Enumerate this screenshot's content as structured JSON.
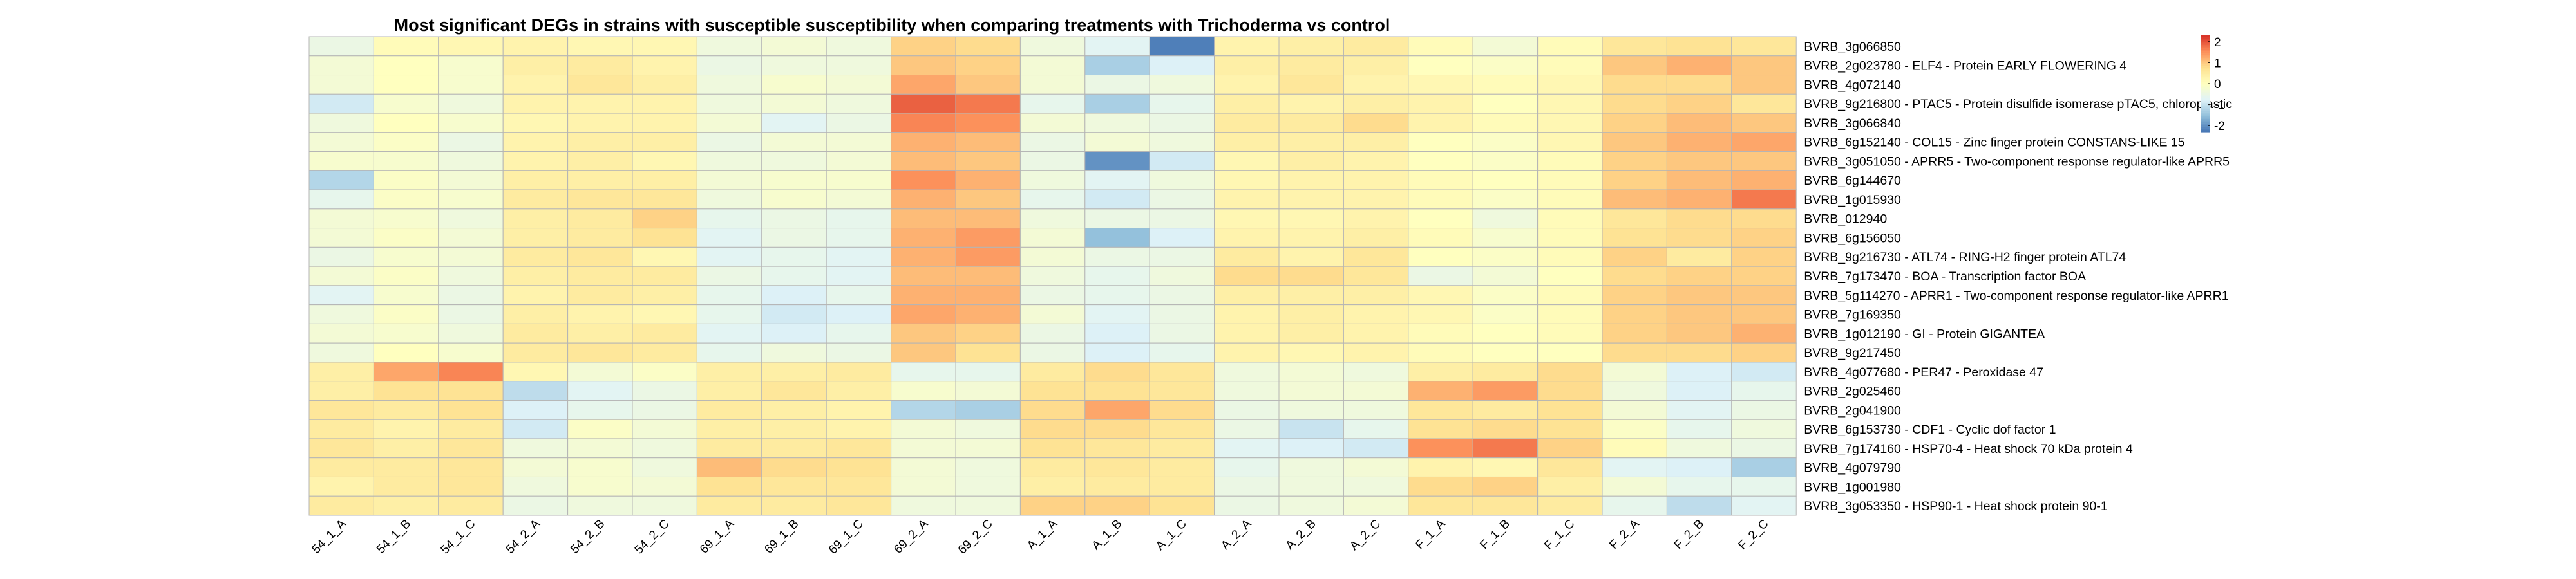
{
  "chart_data": {
    "type": "heatmap",
    "title": "Most significant DEGs in strains with susceptible susceptibility when comparing treatments with Trichoderma vs control",
    "columns": [
      "54_1_A",
      "54_1_B",
      "54_1_C",
      "54_2_A",
      "54_2_B",
      "54_2_C",
      "69_1_A",
      "69_1_B",
      "69_1_C",
      "69_2_A",
      "69_2_C",
      "A_1_A",
      "A_1_B",
      "A_1_C",
      "A_2_A",
      "A_2_B",
      "A_2_C",
      "F_1_A",
      "F_1_B",
      "F_1_C",
      "F_2_A",
      "F_2_B",
      "F_2_C"
    ],
    "rows": [
      "BVRB_3g066850",
      "BVRB_2g023780 - ELF4 - Protein EARLY FLOWERING 4",
      "BVRB_4g072140",
      "BVRB_9g216800 - PTAC5 - Protein disulfide isomerase pTAC5, chloroplastic",
      "BVRB_3g066840",
      "BVRB_6g152140 - COL15 - Zinc finger protein CONSTANS-LIKE 15",
      "BVRB_3g051050 - APRR5 - Two-component response regulator-like APRR5",
      "BVRB_6g144670",
      "BVRB_1g015930",
      "BVRB_012940",
      "BVRB_6g156050",
      "BVRB_9g216730 - ATL74 - RING-H2 finger protein ATL74",
      "BVRB_7g173470 - BOA - Transcription factor BOA",
      "BVRB_5g114270 - APRR1 - Two-component response regulator-like APRR1",
      "BVRB_7g169350",
      "BVRB_1g012190 - GI - Protein GIGANTEA",
      "BVRB_9g217450",
      "BVRB_4g077680 - PER47 - Peroxidase 47",
      "BVRB_2g025460",
      "BVRB_2g041900",
      "BVRB_6g153730 - CDF1 - Cyclic dof factor 1",
      "BVRB_7g174160 - HSP70-4 - Heat shock 70 kDa protein 4",
      "BVRB_4g079790",
      "BVRB_1g001980",
      "BVRB_3g053350 - HSP90-1 - Heat shock protein 90-1"
    ],
    "values": [
      [
        -0.5,
        0.1,
        0.2,
        0.3,
        0.2,
        0.2,
        -0.4,
        -0.3,
        -0.4,
        0.9,
        0.8,
        -0.4,
        -0.7,
        -2.2,
        0.3,
        0.4,
        0.5,
        0.1,
        -0.3,
        0.1,
        0.6,
        0.7,
        0.6
      ],
      [
        -0.3,
        0.0,
        -0.2,
        0.4,
        0.5,
        0.3,
        -0.5,
        -0.4,
        -0.4,
        1.0,
        0.9,
        -0.3,
        -1.3,
        -0.8,
        0.4,
        0.5,
        0.4,
        0.0,
        -0.1,
        0.1,
        1.0,
        1.2,
        1.0
      ],
      [
        -0.3,
        0.0,
        -0.2,
        0.3,
        0.6,
        0.4,
        -0.4,
        -0.2,
        -0.3,
        1.3,
        1.0,
        -0.3,
        -0.5,
        -0.4,
        0.3,
        0.6,
        0.3,
        0.2,
        0.1,
        0.2,
        0.8,
        0.8,
        1.0
      ],
      [
        -0.9,
        -0.2,
        -0.4,
        0.3,
        0.3,
        0.3,
        -0.4,
        -0.3,
        -0.4,
        1.9,
        1.7,
        -0.6,
        -1.3,
        -0.6,
        0.4,
        0.3,
        0.4,
        0.3,
        0.0,
        0.2,
        0.8,
        0.9,
        0.6
      ],
      [
        -0.4,
        0.0,
        -0.2,
        0.2,
        0.3,
        0.3,
        -0.3,
        -0.7,
        -0.5,
        1.6,
        1.5,
        -0.3,
        -0.4,
        -0.5,
        0.5,
        0.5,
        0.8,
        0.3,
        0.1,
        0.2,
        0.9,
        1.1,
        1.0
      ],
      [
        -0.3,
        -0.1,
        -0.5,
        0.3,
        0.4,
        0.4,
        -0.5,
        -0.3,
        -0.3,
        1.2,
        1.1,
        -0.5,
        -0.3,
        -0.4,
        0.4,
        0.4,
        0.4,
        0.0,
        -0.1,
        0.2,
        1.0,
        1.2,
        1.3
      ],
      [
        -0.2,
        -0.2,
        -0.4,
        0.3,
        0.4,
        0.2,
        -0.4,
        -0.4,
        -0.3,
        1.1,
        1.0,
        -0.5,
        -2.0,
        -0.9,
        0.2,
        0.4,
        0.3,
        0.0,
        -0.1,
        0.1,
        0.9,
        1.0,
        1.0
      ],
      [
        -1.2,
        -0.1,
        -0.3,
        0.4,
        0.4,
        0.4,
        -0.3,
        -0.2,
        -0.2,
        1.5,
        1.2,
        -0.4,
        -0.7,
        -0.4,
        0.2,
        0.3,
        0.3,
        0.1,
        0.0,
        0.1,
        0.9,
        1.1,
        1.2
      ],
      [
        -0.6,
        -0.1,
        -0.2,
        0.5,
        0.6,
        0.6,
        -0.4,
        -0.2,
        -0.3,
        1.2,
        1.0,
        -0.6,
        -0.9,
        -0.5,
        0.3,
        0.3,
        0.3,
        0.1,
        -0.1,
        0.1,
        1.1,
        1.2,
        1.7
      ],
      [
        -0.3,
        -0.2,
        -0.4,
        0.4,
        0.5,
        0.9,
        -0.6,
        -0.5,
        -0.6,
        1.1,
        1.1,
        -0.4,
        -0.5,
        -0.5,
        0.2,
        0.2,
        0.3,
        0.0,
        -0.4,
        0.1,
        0.6,
        0.8,
        0.8
      ],
      [
        -0.3,
        -0.1,
        -0.3,
        0.4,
        0.5,
        0.7,
        -0.7,
        -0.5,
        -0.6,
        1.2,
        1.4,
        -0.3,
        -1.5,
        -0.8,
        0.3,
        0.3,
        0.4,
        0.1,
        -0.2,
        0.1,
        0.7,
        0.8,
        0.9
      ],
      [
        -0.5,
        -0.2,
        -0.3,
        0.5,
        0.6,
        0.2,
        -0.7,
        -0.6,
        -0.7,
        1.2,
        1.4,
        -0.3,
        -0.5,
        -0.5,
        0.5,
        0.3,
        0.6,
        0.0,
        -0.1,
        0.1,
        0.9,
        0.5,
        0.9
      ],
      [
        -0.3,
        -0.1,
        -0.4,
        0.4,
        0.5,
        0.5,
        -0.5,
        -0.6,
        -0.7,
        1.1,
        1.1,
        -0.4,
        -0.6,
        -0.4,
        0.8,
        0.8,
        0.6,
        -0.5,
        -0.3,
        0.0,
        0.8,
        0.9,
        0.9
      ],
      [
        -0.7,
        -0.2,
        -0.5,
        0.3,
        0.5,
        0.4,
        -0.6,
        -0.8,
        -0.6,
        1.2,
        1.2,
        -0.5,
        -0.6,
        -0.5,
        0.4,
        0.4,
        0.4,
        0.2,
        -0.1,
        0.1,
        0.9,
        1.0,
        1.0
      ],
      [
        -0.4,
        -0.1,
        -0.5,
        0.4,
        0.3,
        0.2,
        -0.6,
        -0.9,
        -0.8,
        1.3,
        1.2,
        -0.3,
        -0.7,
        -0.5,
        0.3,
        0.4,
        0.3,
        0.2,
        -0.1,
        0.1,
        0.9,
        1.0,
        1.0
      ],
      [
        -0.3,
        -0.2,
        -0.4,
        0.5,
        0.4,
        0.5,
        -0.7,
        -0.8,
        -0.6,
        1.0,
        0.9,
        -0.5,
        -0.8,
        -0.5,
        0.3,
        0.4,
        0.3,
        0.1,
        0.0,
        0.1,
        0.9,
        1.0,
        1.2
      ],
      [
        -0.4,
        0.0,
        -0.2,
        0.5,
        0.6,
        0.5,
        -0.6,
        -0.4,
        -0.5,
        1.0,
        0.7,
        -0.5,
        -0.8,
        -0.6,
        0.3,
        0.2,
        0.3,
        0.1,
        0.0,
        0.0,
        0.8,
        0.8,
        0.9
      ],
      [
        0.4,
        1.3,
        1.6,
        0.2,
        -0.3,
        -0.1,
        0.4,
        0.4,
        0.5,
        -0.6,
        -0.6,
        0.5,
        0.8,
        0.6,
        -0.4,
        -0.3,
        -0.4,
        0.4,
        0.5,
        0.8,
        -0.3,
        -0.8,
        -0.9
      ],
      [
        0.4,
        0.7,
        0.7,
        -1.1,
        -0.7,
        -0.5,
        0.4,
        0.6,
        0.4,
        -0.2,
        -0.3,
        0.7,
        0.7,
        0.6,
        -0.4,
        -0.3,
        -0.3,
        1.2,
        1.4,
        0.8,
        -0.4,
        -0.8,
        -0.6
      ],
      [
        0.6,
        0.5,
        0.7,
        -0.8,
        -0.6,
        -0.5,
        0.5,
        0.4,
        0.3,
        -1.2,
        -1.3,
        0.8,
        1.3,
        0.8,
        -0.5,
        -0.4,
        -0.4,
        0.6,
        0.5,
        0.7,
        -0.3,
        -0.7,
        -0.5
      ],
      [
        0.5,
        0.3,
        0.5,
        -0.9,
        -0.1,
        -0.3,
        0.4,
        0.4,
        0.3,
        -0.3,
        -0.4,
        0.8,
        0.8,
        0.6,
        -0.5,
        -1.0,
        -0.6,
        0.7,
        0.8,
        0.7,
        -0.1,
        -0.6,
        -0.4
      ],
      [
        0.6,
        0.4,
        0.6,
        -0.4,
        -0.3,
        -0.4,
        0.5,
        0.5,
        0.6,
        -0.3,
        -0.3,
        0.7,
        0.6,
        0.5,
        -0.7,
        -0.8,
        -0.9,
        1.5,
        1.7,
        0.9,
        0.1,
        -0.4,
        -0.5
      ],
      [
        0.5,
        0.5,
        0.6,
        -0.3,
        -0.2,
        -0.4,
        1.1,
        0.8,
        0.7,
        -0.3,
        -0.4,
        0.5,
        0.6,
        0.5,
        -0.6,
        -0.4,
        -0.3,
        0.3,
        0.2,
        0.6,
        -0.7,
        -0.8,
        -1.3
      ],
      [
        0.3,
        0.5,
        0.6,
        -0.4,
        -0.2,
        -0.3,
        0.7,
        0.6,
        0.6,
        -0.3,
        -0.4,
        0.4,
        0.5,
        0.5,
        -0.5,
        -0.4,
        -0.4,
        0.8,
        0.9,
        0.4,
        -0.3,
        -0.6,
        -0.6
      ],
      [
        0.5,
        0.4,
        0.5,
        -0.5,
        -0.4,
        -0.4,
        0.5,
        0.5,
        0.6,
        -0.4,
        -0.4,
        0.9,
        0.9,
        0.7,
        -0.5,
        -0.4,
        -0.3,
        0.6,
        0.6,
        0.5,
        -0.6,
        -1.1,
        -0.7
      ]
    ],
    "legend": {
      "ticks": [
        2,
        1,
        0,
        -1,
        -2
      ],
      "range": [
        -2.3,
        2.3
      ],
      "placement": "right"
    },
    "colorscale": [
      "#4575b4",
      "#91bfdb",
      "#e0f3f8",
      "#ffffbf",
      "#fee090",
      "#fc8d59",
      "#d73027"
    ],
    "cell_border_color": "#b5b5b5"
  }
}
